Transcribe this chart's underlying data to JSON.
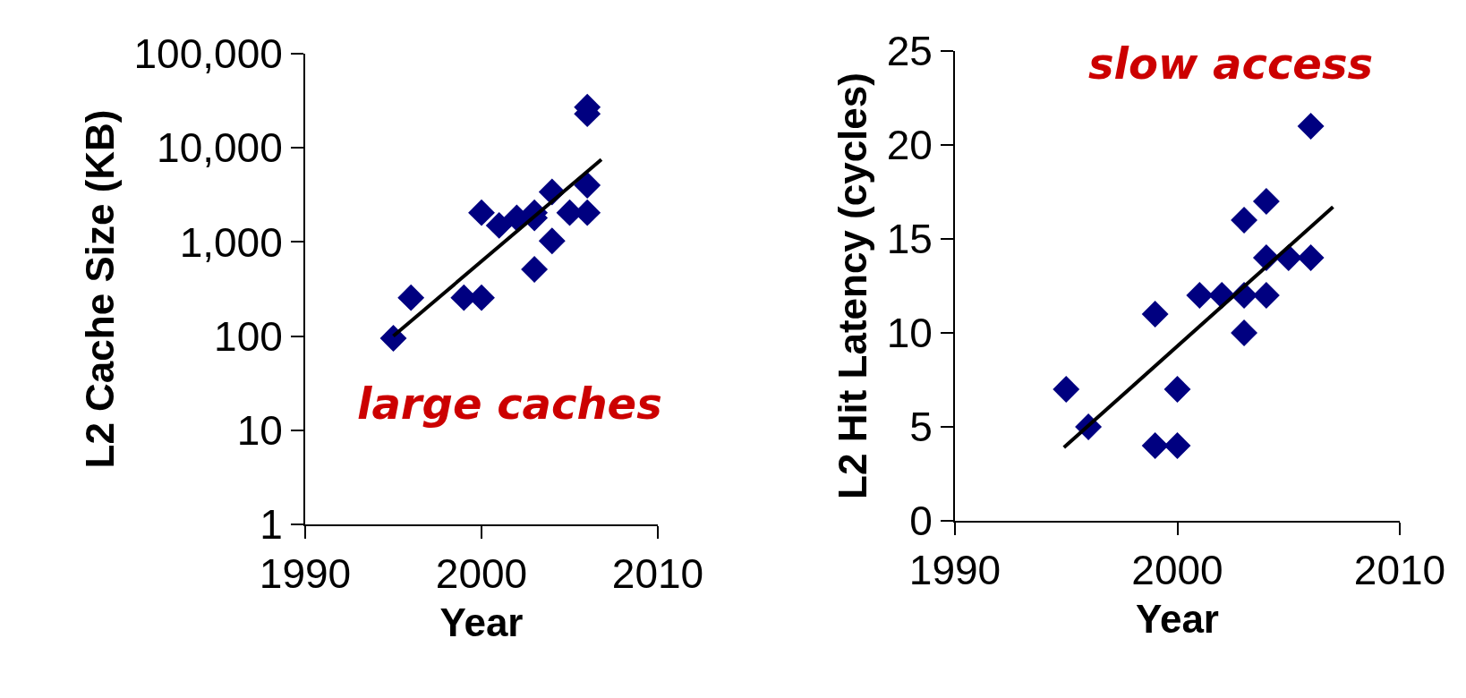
{
  "chart_data": [
    {
      "type": "scatter",
      "xlabel": "Year",
      "ylabel": "L2 Cache Size (KB)",
      "annotations": [
        "large caches"
      ],
      "log": "y",
      "grid": false,
      "marker": "diamond",
      "xlim": [
        1990,
        2010
      ],
      "xticks": [
        1990,
        2000,
        2010
      ],
      "ylim": [
        1,
        100000
      ],
      "yticks": [
        1,
        10,
        100,
        {
          "value": 1000,
          "label": "1,000"
        },
        {
          "value": 10000,
          "label": "10,000"
        },
        {
          "value": 100000,
          "label": "100,000"
        }
      ],
      "series": [
        {
          "color": "#000080",
          "x": [
            1995,
            1996,
            1999,
            2000,
            2000,
            2001,
            2002,
            2003,
            2003,
            2003,
            2004,
            2004,
            2005,
            2006,
            2006,
            2006,
            2006
          ],
          "values": [
            95,
            256,
            256,
            256,
            2048,
            1500,
            1800,
            2048,
            1800,
            512,
            3400,
            1024,
            2048,
            4000,
            2048,
            27000,
            23000
          ]
        },
        {
          "type": "line",
          "marker": "none",
          "color": "#000000",
          "x": [
            1995,
            2006.8
          ],
          "values": [
            100,
            7500
          ]
        }
      ]
    },
    {
      "type": "scatter",
      "xlabel": "Year",
      "ylabel": "L2 Hit Latency (cycles)",
      "annotations": [
        "slow access"
      ],
      "grid": false,
      "marker": "diamond",
      "xlim": [
        1990,
        2010
      ],
      "xticks": [
        1990,
        2000,
        2010
      ],
      "ylim": [
        0,
        25
      ],
      "yticks": [
        0,
        5,
        10,
        15,
        20,
        25
      ],
      "series": [
        {
          "color": "#000080",
          "x": [
            1995,
            1996,
            1999,
            1999,
            2000,
            2000,
            2001,
            2002,
            2003,
            2003,
            2003,
            2004,
            2004,
            2004,
            2005,
            2006,
            2006
          ],
          "values": [
            7,
            5,
            11,
            4,
            7,
            4,
            12,
            12,
            16,
            12,
            10,
            17,
            14,
            12,
            14,
            21,
            14
          ]
        },
        {
          "type": "line",
          "marker": "none",
          "color": "#000000",
          "x": [
            1994.9,
            2007
          ],
          "values": [
            3.9,
            16.7
          ]
        }
      ]
    }
  ]
}
